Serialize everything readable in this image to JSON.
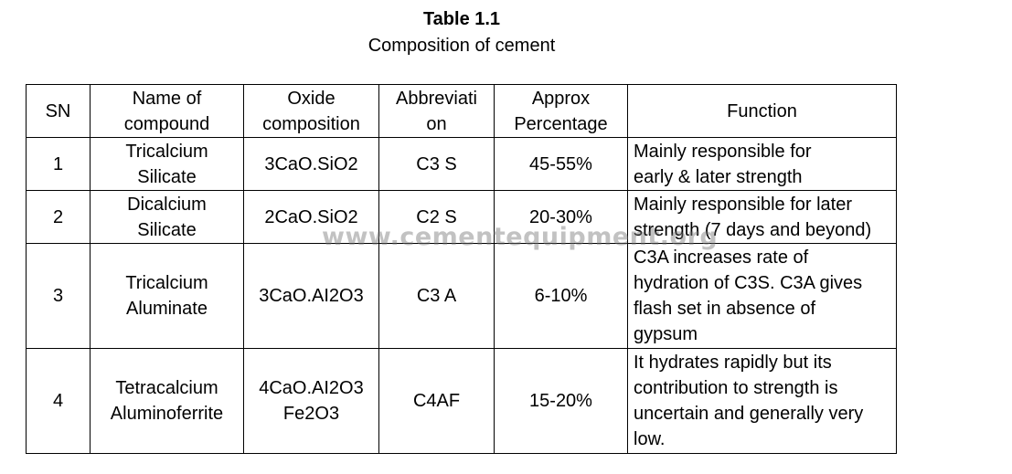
{
  "title": "Table 1.1",
  "subtitle": "Composition of cement",
  "headers": {
    "sn": "SN",
    "name": [
      "Name of",
      "compound"
    ],
    "oxide": [
      "Oxide",
      "composition"
    ],
    "abbr": [
      "Abbreviati",
      "on"
    ],
    "pct": [
      "Approx",
      "Percentage"
    ],
    "func": "Function"
  },
  "rows": [
    {
      "sn": "1",
      "name": [
        "Tricalcium",
        "Silicate"
      ],
      "oxide": [
        "3CaO.SiO2"
      ],
      "abbr": "C3 S",
      "pct": "45-55%",
      "func": [
        "Mainly responsible for",
        "early & later strength"
      ]
    },
    {
      "sn": "2",
      "name": [
        "Dicalcium",
        "Silicate"
      ],
      "oxide": [
        "2CaO.SiO2"
      ],
      "abbr": "C2 S",
      "pct": "20-30%",
      "func": [
        "Mainly responsible for later",
        "strength (7 days and beyond)"
      ]
    },
    {
      "sn": "3",
      "name": [
        "Tricalcium",
        "Aluminate"
      ],
      "oxide": [
        "3CaO.AI2O3"
      ],
      "abbr": "C3 A",
      "pct": "6-10%",
      "func": [
        "C3A increases rate of",
        "hydration of C3S. C3A gives",
        "flash set in absence of",
        "gypsum"
      ]
    },
    {
      "sn": "4",
      "name": [
        "Tetracalcium",
        "Aluminoferrite"
      ],
      "oxide": [
        "4CaO.AI2O3",
        "Fe2O3"
      ],
      "abbr": "C4AF",
      "pct": "15-20%",
      "func": [
        "It hydrates rapidly but its",
        "contribution to strength is",
        "uncertain and generally very",
        "low."
      ]
    }
  ],
  "watermark": "www.cementequipment.org"
}
